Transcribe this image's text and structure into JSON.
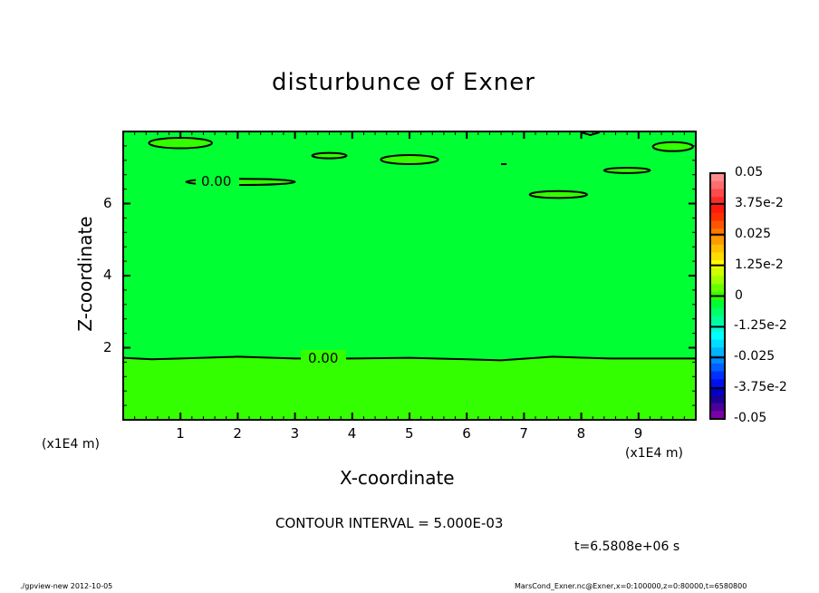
{
  "chart_data": {
    "type": "heatmap",
    "title": "disturbunce of Exner",
    "xlabel": "X-coordinate",
    "ylabel": "Z-coordinate",
    "x_unit_label": "(x1E4 m)",
    "y_unit_label": "(x1E4 m)",
    "xlim": [
      0,
      10
    ],
    "ylim": [
      0,
      8
    ],
    "xticks": [
      "1",
      "2",
      "3",
      "4",
      "5",
      "6",
      "7",
      "8",
      "9"
    ],
    "yticks": [
      "2",
      "4",
      "6"
    ],
    "contour_interval_label": "CONTOUR INTERVAL = 5.000E-03",
    "time_label": "t=6.5808e+06 s",
    "contour_labels": [
      "0.00",
      "0.00"
    ],
    "fill": {
      "above_contour_value": "0 to -5.0e-3",
      "below_contour_value": "0 to 5.0e-3",
      "zero_line_height_x1E4m": 1.7
    },
    "colorbar": {
      "range": [
        -0.05,
        0.05
      ],
      "tick_labels": [
        "0.05",
        "3.75e-2",
        "0.025",
        "1.25e-2",
        "0",
        "-1.25e-2",
        "-0.025",
        "-3.75e-2",
        "-0.05"
      ],
      "colors": [
        "#ff8c8c",
        "#ff6e6e",
        "#ff4a4a",
        "#ff2a2a",
        "#ff1a10",
        "#ff3000",
        "#ff5500",
        "#ff7800",
        "#ff9a00",
        "#ffbe00",
        "#ffdc00",
        "#ffff00",
        "#ccff00",
        "#a0ff00",
        "#66ff00",
        "#33ff00",
        "#00ff33",
        "#00ff66",
        "#00ff99",
        "#00ffcc",
        "#00ffff",
        "#00ddff",
        "#00b4ff",
        "#008cff",
        "#0060ff",
        "#0030ff",
        "#0010ee",
        "#0000cc",
        "#1a0099",
        "#4b0099",
        "#7a00a8"
      ]
    }
  },
  "footer": {
    "left": "./gpview-new  2012-10-05",
    "right": "MarsCond_Exner.nc@Exner,x=0:100000,z=0:80000,t=6580800"
  },
  "colors": {
    "neg_small": "#00ff33",
    "pos_small": "#33ff00"
  }
}
